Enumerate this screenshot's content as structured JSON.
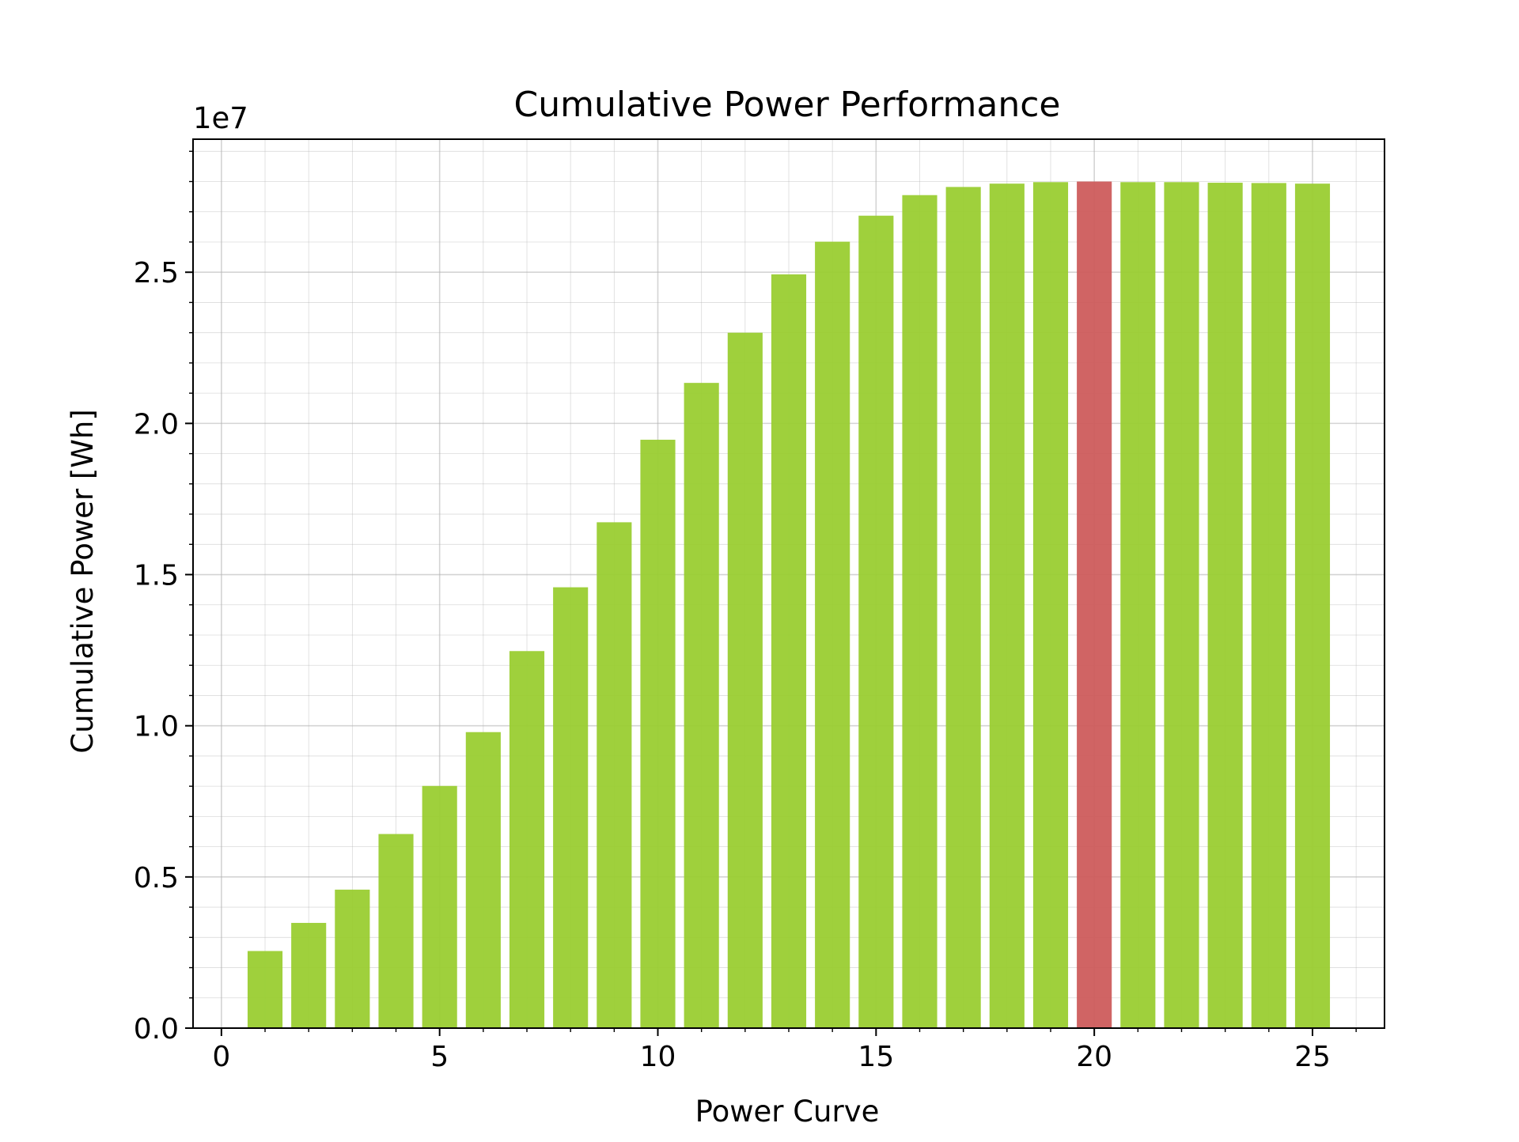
{
  "chart_data": {
    "type": "bar",
    "title": "Cumulative Power Performance",
    "xlabel": "Power Curve",
    "ylabel": "Cumulative Power [Wh]",
    "y_offset_label": "1e7",
    "x": [
      1,
      2,
      3,
      4,
      5,
      6,
      7,
      8,
      9,
      10,
      11,
      12,
      13,
      14,
      15,
      16,
      17,
      18,
      19,
      20,
      21,
      22,
      23,
      24,
      25
    ],
    "values": [
      2550000,
      3480000,
      4580000,
      6420000,
      8010000,
      9790000,
      12470000,
      14580000,
      16730000,
      19460000,
      21340000,
      23000000,
      24930000,
      26010000,
      26870000,
      27550000,
      27820000,
      27930000,
      27980000,
      28000000,
      27980000,
      27980000,
      27960000,
      27950000,
      27930000
    ],
    "highlight_index": 19,
    "bar_width": 0.8,
    "xlim": [
      -0.65,
      26.65
    ],
    "ylim": [
      0,
      29400000
    ],
    "x_ticks": [
      0,
      5,
      10,
      15,
      20,
      25
    ],
    "x_tick_labels": [
      "0",
      "5",
      "10",
      "15",
      "20",
      "25"
    ],
    "x_minor_step": 1,
    "y_ticks": [
      0,
      5000000,
      10000000,
      15000000,
      20000000,
      25000000
    ],
    "y_tick_labels": [
      "0.0",
      "0.5",
      "1.0",
      "1.5",
      "2.0",
      "2.5"
    ],
    "y_minor_step": 1000000,
    "grid": true,
    "legend": "none",
    "colors": {
      "bar": "#9acd32",
      "highlight": "#cd5c5c",
      "grid": "#b0b0b0",
      "axis": "#000000"
    }
  }
}
